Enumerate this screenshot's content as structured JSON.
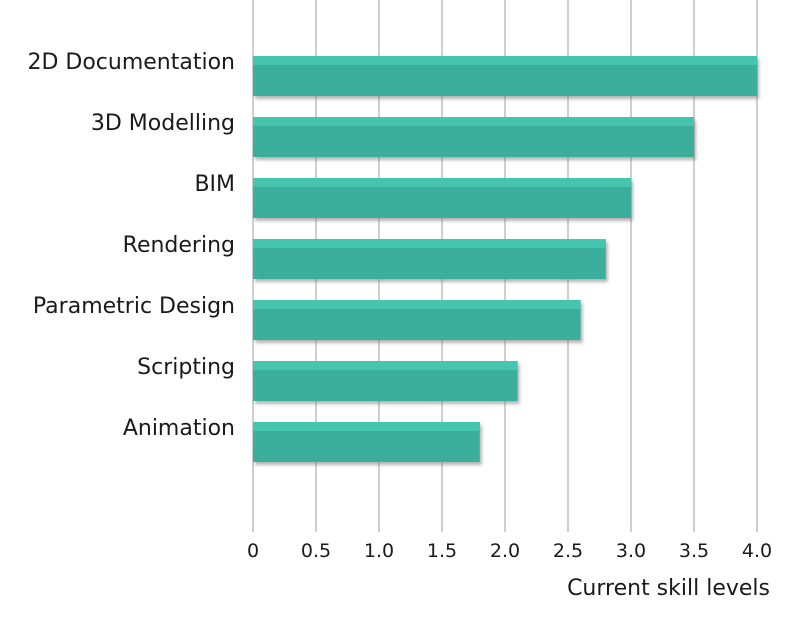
{
  "chart_data": {
    "type": "bar",
    "orientation": "horizontal",
    "title": "",
    "xlabel": "Current skill levels",
    "ylabel": "",
    "categories": [
      "2D Documentation",
      "3D Modelling",
      "BIM",
      "Rendering",
      "Parametric Design",
      "Scripting",
      "Animation"
    ],
    "values": [
      4.0,
      3.5,
      3.0,
      2.8,
      2.6,
      2.1,
      1.8
    ],
    "xlim": [
      0,
      4.0
    ],
    "ticks": [
      "0",
      "0.5",
      "1.0",
      "1.5",
      "2.0",
      "2.5",
      "3.0",
      "3.5",
      "4.0"
    ],
    "grid": true,
    "legend": "none",
    "colors": {
      "bar": "#3aaf9b",
      "bar_top": "#45c4ae",
      "bar_shadow": "#8a8a8a",
      "grid": "#cfcfcf"
    }
  }
}
